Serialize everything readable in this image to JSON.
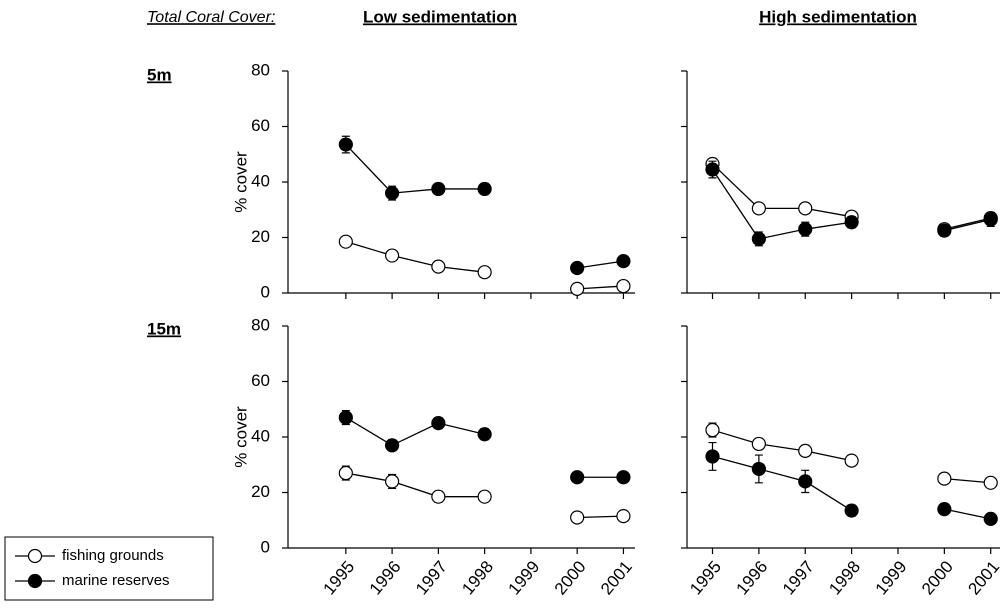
{
  "header": {
    "title": "Total Coral Cover:",
    "columns": [
      "Low sedimentation",
      "High sedimentation"
    ],
    "rows": [
      "5m",
      "15m"
    ]
  },
  "chart_data": [
    {
      "type": "line",
      "ylabel": "% cover",
      "show_yticklabels": true,
      "show_xticklabels": false,
      "x": [
        1995,
        1996,
        1997,
        1998,
        1999,
        2000,
        2001
      ],
      "xlim": [
        1993.75,
        2001.25
      ],
      "xticks": [
        1995,
        1996,
        1997,
        1998,
        1999,
        2000,
        2001
      ],
      "ylim": [
        0,
        80
      ],
      "yticks": [
        0,
        20,
        40,
        60,
        80
      ],
      "series": [
        {
          "name": "fishing grounds",
          "color": "#ffffff",
          "values": [
            18.5,
            13.5,
            9.5,
            7.5,
            null,
            1.5,
            2.5
          ],
          "errors": [
            1,
            1,
            1,
            1,
            null,
            0.5,
            0.5
          ]
        },
        {
          "name": "marine reserves",
          "color": "#000000",
          "values": [
            53.5,
            36,
            37.5,
            37.5,
            null,
            9,
            11.5
          ],
          "errors": [
            3,
            2.5,
            2,
            2,
            null,
            1,
            1
          ]
        }
      ]
    },
    {
      "type": "line",
      "show_yticklabels": false,
      "show_xticklabels": false,
      "x": [
        1995,
        1996,
        1997,
        1998,
        1999,
        2000,
        2001
      ],
      "xlim": [
        1994.45,
        2001.2
      ],
      "xticks": [
        1995,
        1996,
        1997,
        1998,
        1999,
        2000,
        2001
      ],
      "ylim": [
        0,
        80
      ],
      "yticks": [
        0,
        20,
        40,
        60,
        80
      ],
      "series": [
        {
          "name": "fishing grounds",
          "color": "#ffffff",
          "values": [
            46.5,
            30.5,
            30.5,
            27.5,
            null,
            23,
            27
          ],
          "errors": [
            2,
            1,
            1,
            1,
            null,
            1,
            1
          ]
        },
        {
          "name": "marine reserves",
          "color": "#000000",
          "values": [
            44.5,
            19.5,
            23,
            25.5,
            null,
            22.5,
            26.5
          ],
          "errors": [
            3,
            2.5,
            2.5,
            2,
            null,
            2,
            2.5
          ]
        }
      ]
    },
    {
      "type": "line",
      "ylabel": "% cover",
      "show_yticklabels": true,
      "show_xticklabels": true,
      "x": [
        1995,
        1996,
        1997,
        1998,
        1999,
        2000,
        2001
      ],
      "xlim": [
        1993.75,
        2001.25
      ],
      "xticks": [
        1995,
        1996,
        1997,
        1998,
        1999,
        2000,
        2001
      ],
      "ylim": [
        0,
        80
      ],
      "yticks": [
        0,
        20,
        40,
        60,
        80
      ],
      "series": [
        {
          "name": "fishing grounds",
          "color": "#ffffff",
          "values": [
            27,
            24,
            18.5,
            18.5,
            null,
            11,
            11.5
          ],
          "errors": [
            2.5,
            2.5,
            2,
            1,
            null,
            0.5,
            0.5
          ]
        },
        {
          "name": "marine reserves",
          "color": "#000000",
          "values": [
            47,
            37,
            45,
            41,
            null,
            25.5,
            25.5
          ],
          "errors": [
            2.5,
            2,
            2,
            2,
            null,
            1,
            1
          ]
        }
      ]
    },
    {
      "type": "line",
      "show_yticklabels": false,
      "show_xticklabels": true,
      "x": [
        1995,
        1996,
        1997,
        1998,
        1999,
        2000,
        2001
      ],
      "xlim": [
        1994.45,
        2001.2
      ],
      "xticks": [
        1995,
        1996,
        1997,
        1998,
        1999,
        2000,
        2001
      ],
      "ylim": [
        0,
        80
      ],
      "yticks": [
        0,
        20,
        40,
        60,
        80
      ],
      "series": [
        {
          "name": "fishing grounds",
          "color": "#ffffff",
          "values": [
            42.5,
            37.5,
            35,
            31.5,
            null,
            25,
            23.5
          ],
          "errors": [
            2.5,
            2,
            2,
            1,
            null,
            1,
            1
          ]
        },
        {
          "name": "marine reserves",
          "color": "#000000",
          "values": [
            33,
            28.5,
            24,
            13.5,
            null,
            14,
            10.5
          ],
          "errors": [
            5,
            5,
            4,
            2,
            null,
            2,
            1.5
          ]
        }
      ]
    }
  ]
}
